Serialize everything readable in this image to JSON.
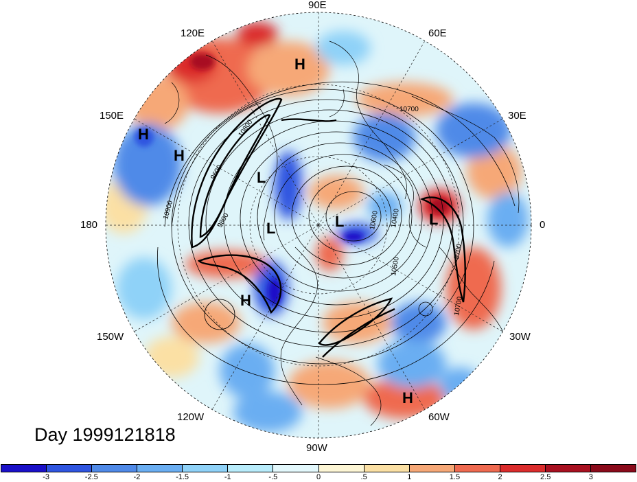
{
  "map": {
    "projection": "polar-stereographic-north",
    "day_label": "Day 1999121818",
    "lon_labels": {
      "lon_90e": "90E",
      "lon_60e": "60E",
      "lon_30e": "30E",
      "lon_0": "0",
      "lon_30w": "30W",
      "lon_60w": "60W",
      "lon_90w": "90W",
      "lon_120w": "120W",
      "lon_150w": "150W",
      "lon_180": "180",
      "lon_150e": "150E",
      "lon_120e": "120E"
    },
    "contour_labels": [
      "10700",
      "10800",
      "9800",
      "9600",
      "10500",
      "10400",
      "10900",
      "9700",
      "10600",
      "10700"
    ],
    "highs_lows": [
      {
        "label": "H"
      },
      {
        "label": "H"
      },
      {
        "label": "H"
      },
      {
        "label": "H"
      },
      {
        "label": "H"
      },
      {
        "label": "L"
      },
      {
        "label": "L"
      },
      {
        "label": "L"
      },
      {
        "label": "L"
      }
    ]
  },
  "colorbar": {
    "ticks": [
      "-3",
      "-2.5",
      "-2",
      "-1.5",
      "-1",
      "-.5",
      "0",
      ".5",
      "1",
      "1.5",
      "2",
      "2.5",
      "3"
    ],
    "colors": [
      "#1a10c8",
      "#2f55e0",
      "#4f8ae8",
      "#6aaef2",
      "#8fd2f8",
      "#b8ecfb",
      "#e3f8fc",
      "#fdf6d5",
      "#fbe0a4",
      "#f6a877",
      "#ef6a50",
      "#db2c2c",
      "#a81020",
      "#8a0a1a"
    ]
  }
}
